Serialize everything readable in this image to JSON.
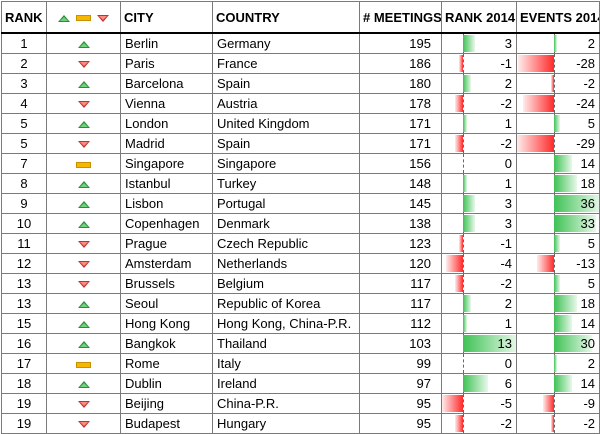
{
  "headers": {
    "rank": "RANK",
    "city": "CITY",
    "country": "COUNTRY",
    "meetings": "# MEETINGS",
    "rank2014": "RANK 2014",
    "events2014": "EVENTS 2014"
  },
  "legend_icons": [
    "triangle-up-icon",
    "dash-icon",
    "triangle-down-icon"
  ],
  "colors": {
    "positive": "#3fc255",
    "negative": "#ff2a2a",
    "neutral": "#f5b800"
  },
  "scales": {
    "rank_min": -5,
    "rank_max": 13,
    "events_min": -29,
    "events_max": 36
  },
  "rows": [
    {
      "rank": "1",
      "trend": "up",
      "city": "Berlin",
      "country": "Germany",
      "meetings": "195",
      "rank2014": "3",
      "events2014": "2",
      "rank_v": 3,
      "events_v": 2
    },
    {
      "rank": "2",
      "trend": "down",
      "city": "Paris",
      "country": "France",
      "meetings": "186",
      "rank2014": "-1",
      "events2014": "-28",
      "rank_v": -1,
      "events_v": -28
    },
    {
      "rank": "3",
      "trend": "up",
      "city": "Barcelona",
      "country": "Spain",
      "meetings": "180",
      "rank2014": "2",
      "events2014": "-2",
      "rank_v": 2,
      "events_v": -2
    },
    {
      "rank": "4",
      "trend": "down",
      "city": "Vienna",
      "country": "Austria",
      "meetings": "178",
      "rank2014": "-2",
      "events2014": "-24",
      "rank_v": -2,
      "events_v": -24
    },
    {
      "rank": "5",
      "trend": "up",
      "city": "London",
      "country": "United Kingdom",
      "meetings": "171",
      "rank2014": "1",
      "events2014": "5",
      "rank_v": 1,
      "events_v": 5
    },
    {
      "rank": "5",
      "trend": "down",
      "city": "Madrid",
      "country": "Spain",
      "meetings": "171",
      "rank2014": "-2",
      "events2014": "-29",
      "rank_v": -2,
      "events_v": -29
    },
    {
      "rank": "7",
      "trend": "same",
      "city": "Singapore",
      "country": "Singapore",
      "meetings": "156",
      "rank2014": "0",
      "events2014": "14",
      "rank_v": 0,
      "events_v": 14
    },
    {
      "rank": "8",
      "trend": "up",
      "city": "Istanbul",
      "country": "Turkey",
      "meetings": "148",
      "rank2014": "1",
      "events2014": "18",
      "rank_v": 1,
      "events_v": 18
    },
    {
      "rank": "9",
      "trend": "up",
      "city": "Lisbon",
      "country": "Portugal",
      "meetings": "145",
      "rank2014": "3",
      "events2014": "36",
      "rank_v": 3,
      "events_v": 36
    },
    {
      "rank": "10",
      "trend": "up",
      "city": "Copenhagen",
      "country": "Denmark",
      "meetings": "138",
      "rank2014": "3",
      "events2014": "33",
      "rank_v": 3,
      "events_v": 33
    },
    {
      "rank": "11",
      "trend": "down",
      "city": "Prague",
      "country": "Czech Republic",
      "meetings": "123",
      "rank2014": "-1",
      "events2014": "5",
      "rank_v": -1,
      "events_v": 5
    },
    {
      "rank": "12",
      "trend": "down",
      "city": "Amsterdam",
      "country": "Netherlands",
      "meetings": "120",
      "rank2014": "-4",
      "events2014": "-13",
      "rank_v": -4,
      "events_v": -13
    },
    {
      "rank": "13",
      "trend": "down",
      "city": "Brussels",
      "country": "Belgium",
      "meetings": "117",
      "rank2014": "-2",
      "events2014": "5",
      "rank_v": -2,
      "events_v": 5
    },
    {
      "rank": "13",
      "trend": "up",
      "city": "Seoul",
      "country": "Republic of Korea",
      "meetings": "117",
      "rank2014": "2",
      "events2014": "18",
      "rank_v": 2,
      "events_v": 18
    },
    {
      "rank": "15",
      "trend": "up",
      "city": "Hong Kong",
      "country": "Hong Kong, China-P.R.",
      "meetings": "112",
      "rank2014": "1",
      "events2014": "14",
      "rank_v": 1,
      "events_v": 14
    },
    {
      "rank": "16",
      "trend": "up",
      "city": "Bangkok",
      "country": "Thailand",
      "meetings": "103",
      "rank2014": "13",
      "events2014": "30",
      "rank_v": 13,
      "events_v": 30
    },
    {
      "rank": "17",
      "trend": "same",
      "city": "Rome",
      "country": "Italy",
      "meetings": "99",
      "rank2014": "0",
      "events2014": "2",
      "rank_v": 0,
      "events_v": 2
    },
    {
      "rank": "18",
      "trend": "up",
      "city": "Dublin",
      "country": "Ireland",
      "meetings": "97",
      "rank2014": "6",
      "events2014": "14",
      "rank_v": 6,
      "events_v": 14
    },
    {
      "rank": "19",
      "trend": "down",
      "city": "Beijing",
      "country": "China-P.R.",
      "meetings": "95",
      "rank2014": "-5",
      "events2014": "-9",
      "rank_v": -5,
      "events_v": -9
    },
    {
      "rank": "19",
      "trend": "down",
      "city": "Budapest",
      "country": "Hungary",
      "meetings": "95",
      "rank2014": "-2",
      "events2014": "-2",
      "rank_v": -2,
      "events_v": -2
    }
  ]
}
